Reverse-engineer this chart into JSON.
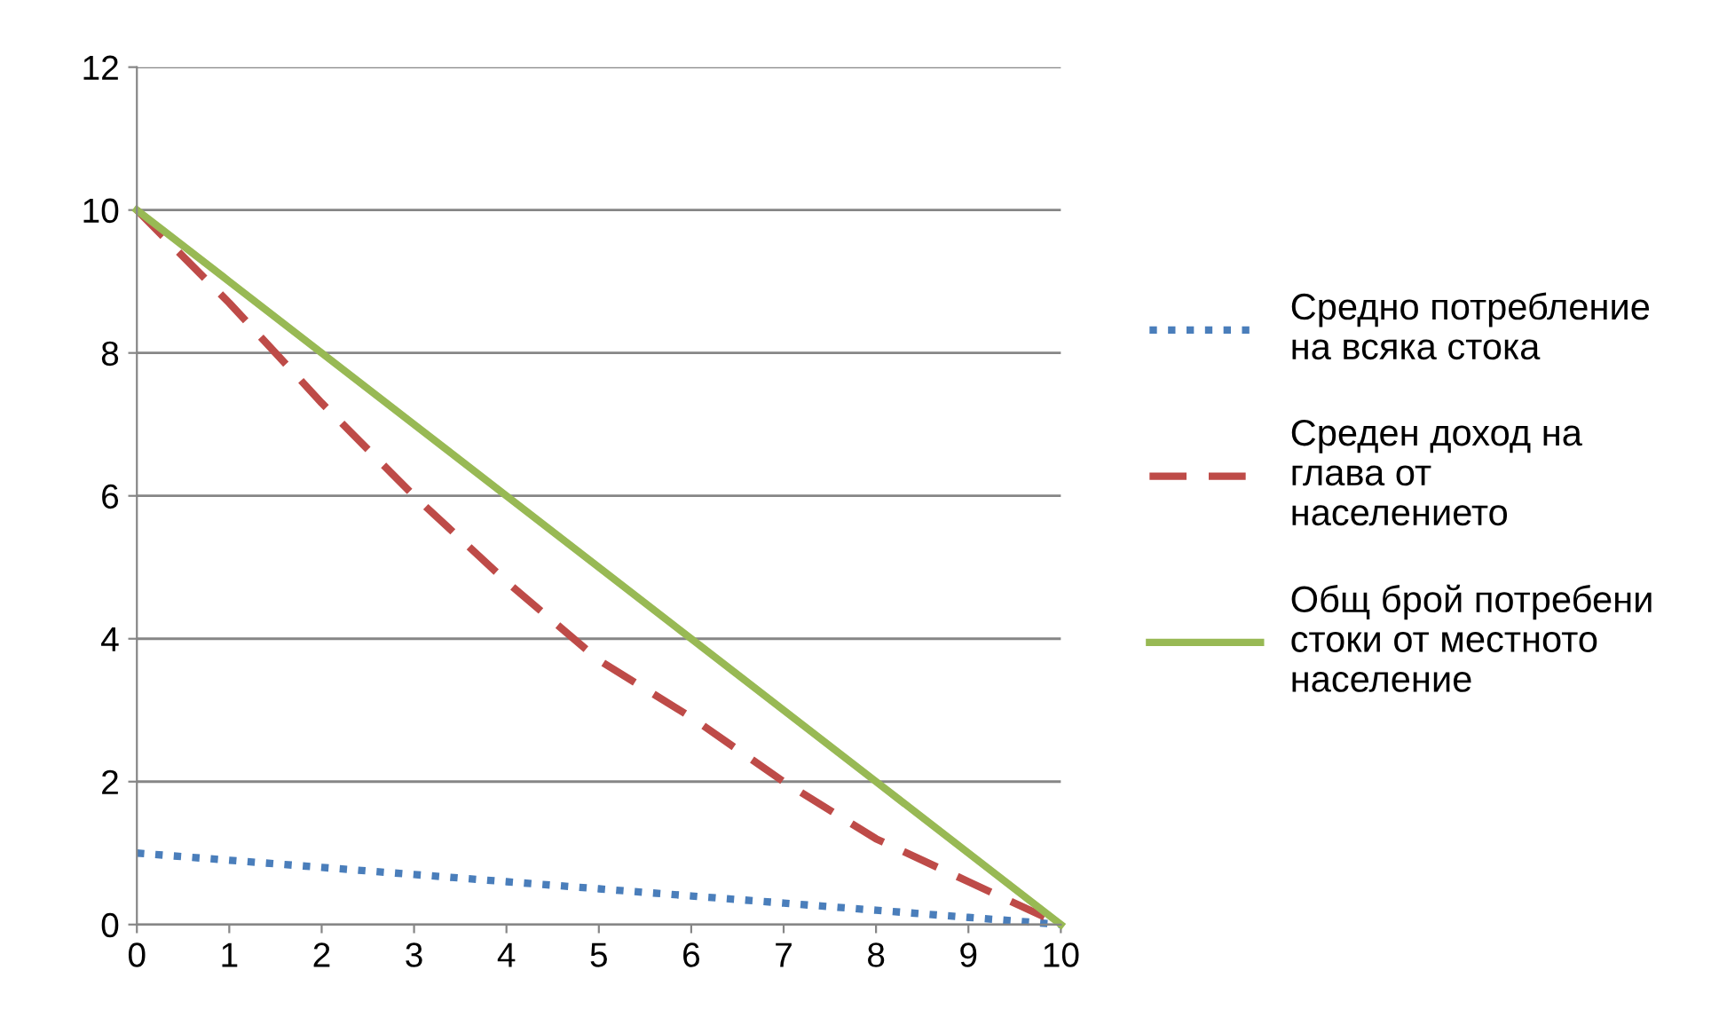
{
  "chart_data": {
    "type": "line",
    "x": [
      0,
      1,
      2,
      3,
      4,
      5,
      6,
      7,
      8,
      9,
      10
    ],
    "series": [
      {
        "name": "Средно потребление на всяка стока",
        "color": "#4a7ebb",
        "line_style": "dotted",
        "values": [
          1,
          0.9,
          0.8,
          0.7,
          0.6,
          0.5,
          0.4,
          0.3,
          0.2,
          0.1,
          0
        ]
      },
      {
        "name": "Среден доход на глава от населението",
        "color": "#be4b48",
        "line_style": "dashed",
        "values": [
          10,
          8.7,
          7.3,
          6,
          4.8,
          3.7,
          2.9,
          2,
          1.2,
          0.6,
          0
        ]
      },
      {
        "name": "Общ брой потребени стоки от местното население",
        "color": "#98b954",
        "line_style": "solid",
        "values": [
          10,
          9,
          8,
          7,
          6,
          5,
          4,
          3,
          2,
          1,
          0
        ]
      }
    ],
    "xlim": [
      0,
      10
    ],
    "xticks": [
      0,
      1,
      2,
      3,
      4,
      5,
      6,
      7,
      8,
      9,
      10
    ],
    "ylim": [
      0,
      12
    ],
    "yticks": [
      0,
      2,
      4,
      6,
      8,
      10,
      12
    ],
    "grid": "y",
    "legend": "right",
    "marker": "none"
  }
}
